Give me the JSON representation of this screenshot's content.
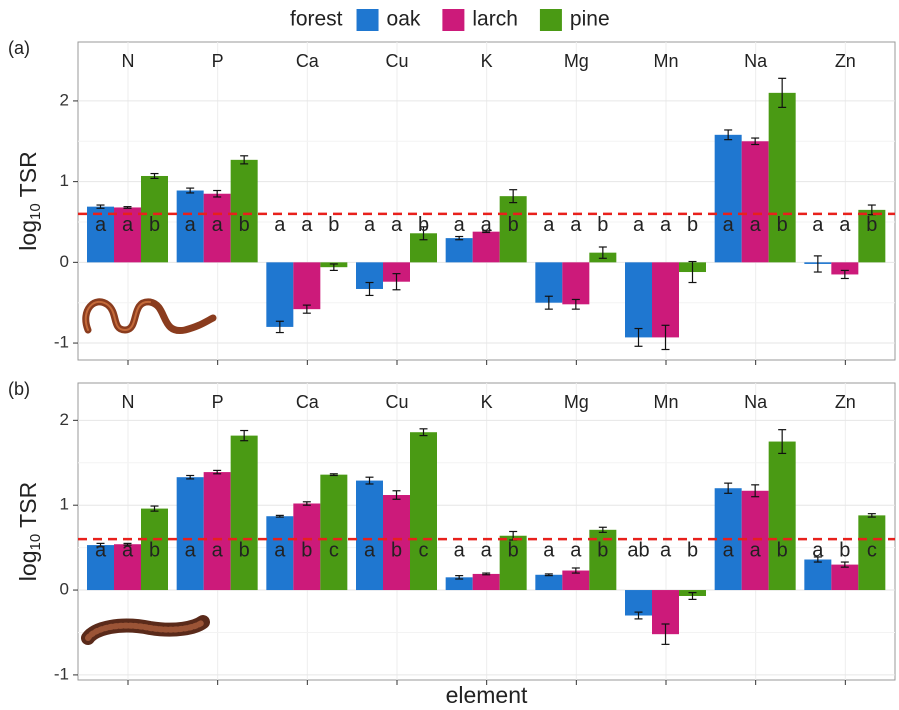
{
  "chart_data": [
    {
      "type": "bar",
      "panel_label": "(a)",
      "legend_title": "forest",
      "ylabel": "log",
      "ylabel_sub": "10",
      "ylabel_suffix": "TSR",
      "categories": [
        "N",
        "P",
        "Ca",
        "Cu",
        "K",
        "Mg",
        "Mn",
        "Na",
        "Zn"
      ],
      "series": [
        {
          "name": "oak",
          "color": "#1f77d0",
          "values": [
            0.69,
            0.89,
            -0.8,
            -0.33,
            0.3,
            -0.5,
            -0.93,
            1.58,
            -0.02
          ],
          "errors": [
            0.02,
            0.03,
            0.07,
            0.08,
            0.02,
            0.08,
            0.11,
            0.06,
            0.1
          ],
          "letters": [
            "a",
            "a",
            "a",
            "a",
            "a",
            "a",
            "a",
            "a",
            "a"
          ]
        },
        {
          "name": "larch",
          "color": "#cc1a7a",
          "values": [
            0.68,
            0.85,
            -0.58,
            -0.24,
            0.38,
            -0.52,
            -0.93,
            1.5,
            -0.15
          ],
          "errors": [
            0.01,
            0.04,
            0.05,
            0.1,
            0.01,
            0.06,
            0.15,
            0.04,
            0.05
          ],
          "letters": [
            "a",
            "a",
            "a",
            "a",
            "a",
            "a",
            "a",
            "a",
            "a"
          ]
        },
        {
          "name": "pine",
          "color": "#4a9a14",
          "values": [
            1.07,
            1.27,
            -0.06,
            0.36,
            0.82,
            0.12,
            -0.12,
            2.1,
            0.65
          ],
          "errors": [
            0.03,
            0.05,
            0.04,
            0.08,
            0.08,
            0.07,
            0.13,
            0.18,
            0.06
          ],
          "letters": [
            "b",
            "b",
            "b",
            "b",
            "b",
            "b",
            "b",
            "b",
            "b"
          ]
        }
      ],
      "reference_line": 0.6,
      "reference_color": "#e8201c",
      "ylim": [
        -1.21,
        2.73
      ],
      "yticks": [
        -1,
        0,
        1,
        2
      ],
      "grid": true
    },
    {
      "type": "bar",
      "panel_label": "(b)",
      "xlabel": "element",
      "ylabel": "log",
      "ylabel_sub": "10",
      "ylabel_suffix": "TSR",
      "categories": [
        "N",
        "P",
        "Ca",
        "Cu",
        "K",
        "Mg",
        "Mn",
        "Na",
        "Zn"
      ],
      "series": [
        {
          "color": "#1f77d0",
          "values": [
            0.53,
            1.33,
            0.87,
            1.29,
            0.15,
            0.18,
            -0.3,
            1.2,
            0.36
          ],
          "errors": [
            0.02,
            0.02,
            0.01,
            0.04,
            0.02,
            0.01,
            0.04,
            0.06,
            0.03
          ],
          "letters": [
            "a",
            "a",
            "a",
            "a",
            "a",
            "a",
            "ab",
            "a",
            "a"
          ]
        },
        {
          "color": "#cc1a7a",
          "values": [
            0.54,
            1.39,
            1.02,
            1.12,
            0.19,
            0.23,
            -0.52,
            1.17,
            0.3
          ],
          "errors": [
            0.01,
            0.02,
            0.02,
            0.05,
            0.01,
            0.03,
            0.12,
            0.07,
            0.03
          ],
          "letters": [
            "a",
            "a",
            "b",
            "b",
            "a",
            "a",
            "a",
            "a",
            "b"
          ]
        },
        {
          "color": "#4a9a14",
          "values": [
            0.96,
            1.82,
            1.36,
            1.86,
            0.64,
            0.71,
            -0.07,
            1.75,
            0.88
          ],
          "errors": [
            0.03,
            0.06,
            0.01,
            0.04,
            0.05,
            0.03,
            0.04,
            0.14,
            0.02
          ],
          "letters": [
            "b",
            "b",
            "c",
            "c",
            "b",
            "b",
            "b",
            "b",
            "c"
          ]
        }
      ],
      "reference_line": 0.6,
      "reference_color": "#e8201c",
      "ylim": [
        -1.06,
        2.44
      ],
      "yticks": [
        -1,
        0,
        1,
        2
      ],
      "grid": true
    }
  ]
}
